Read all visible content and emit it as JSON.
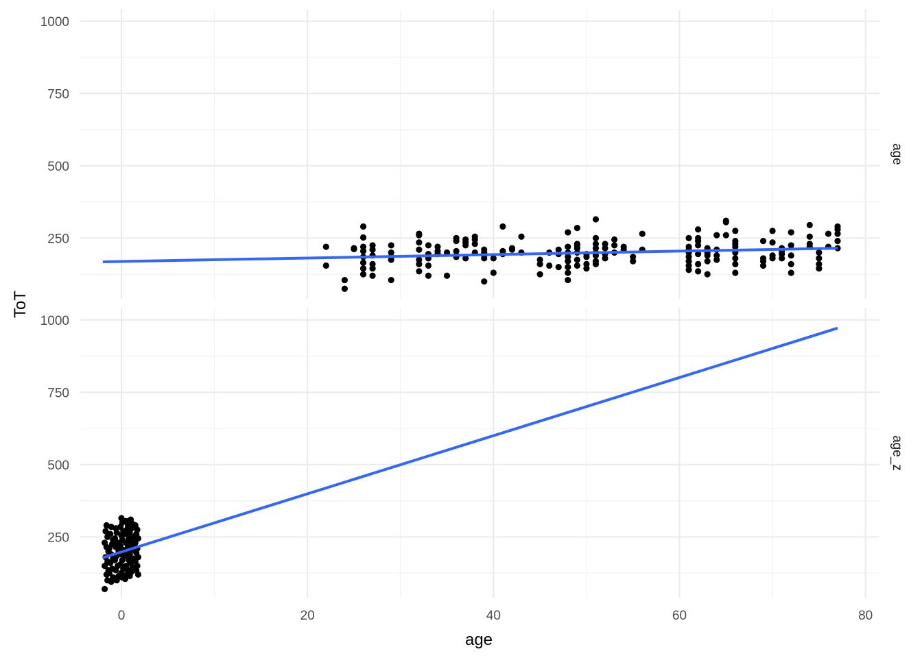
{
  "chart_data": {
    "type": "scatter",
    "title": "",
    "xlabel": "age",
    "ylabel": "ToT",
    "xlim": [
      -4.5,
      81.5
    ],
    "xticks": [
      0,
      20,
      40,
      60,
      80
    ],
    "yticks": [
      250,
      500,
      750,
      1000
    ],
    "grid": true,
    "point_color": "#000000",
    "line_color": "#3366ff",
    "panels": [
      {
        "strip_label": "age",
        "ylim": [
          40,
          1040
        ],
        "points": [
          [
            22,
            155
          ],
          [
            22,
            220
          ],
          [
            24,
            75
          ],
          [
            24,
            105
          ],
          [
            25,
            212
          ],
          [
            25,
            215
          ],
          [
            26,
            290
          ],
          [
            26,
            252
          ],
          [
            26,
            220
          ],
          [
            26,
            205
          ],
          [
            26,
            185
          ],
          [
            26,
            165
          ],
          [
            26,
            145
          ],
          [
            26,
            125
          ],
          [
            27,
            225
          ],
          [
            27,
            210
          ],
          [
            27,
            190
          ],
          [
            27,
            160
          ],
          [
            27,
            145
          ],
          [
            27,
            120
          ],
          [
            29,
            225
          ],
          [
            29,
            200
          ],
          [
            29,
            185
          ],
          [
            29,
            175
          ],
          [
            29,
            105
          ],
          [
            32,
            265
          ],
          [
            32,
            260
          ],
          [
            32,
            235
          ],
          [
            32,
            210
          ],
          [
            32,
            175
          ],
          [
            32,
            160
          ],
          [
            32,
            135
          ],
          [
            33,
            225
          ],
          [
            33,
            195
          ],
          [
            33,
            180
          ],
          [
            33,
            155
          ],
          [
            33,
            120
          ],
          [
            34,
            220
          ],
          [
            34,
            205
          ],
          [
            34,
            195
          ],
          [
            35,
            200
          ],
          [
            35,
            120
          ],
          [
            36,
            250
          ],
          [
            36,
            240
          ],
          [
            36,
            205
          ],
          [
            36,
            190
          ],
          [
            36,
            185
          ],
          [
            37,
            245
          ],
          [
            37,
            235
          ],
          [
            37,
            225
          ],
          [
            37,
            180
          ],
          [
            38,
            255
          ],
          [
            38,
            245
          ],
          [
            38,
            230
          ],
          [
            38,
            200
          ],
          [
            39,
            210
          ],
          [
            39,
            200
          ],
          [
            39,
            190
          ],
          [
            39,
            180
          ],
          [
            39,
            100
          ],
          [
            40,
            180
          ],
          [
            40,
            130
          ],
          [
            41,
            290
          ],
          [
            41,
            205
          ],
          [
            41,
            195
          ],
          [
            42,
            215
          ],
          [
            42,
            210
          ],
          [
            43,
            255
          ],
          [
            43,
            200
          ],
          [
            45,
            175
          ],
          [
            45,
            160
          ],
          [
            45,
            125
          ],
          [
            46,
            200
          ],
          [
            46,
            155
          ],
          [
            47,
            210
          ],
          [
            47,
            195
          ],
          [
            47,
            150
          ],
          [
            48,
            270
          ],
          [
            48,
            220
          ],
          [
            48,
            200
          ],
          [
            48,
            185
          ],
          [
            48,
            170
          ],
          [
            48,
            150
          ],
          [
            48,
            130
          ],
          [
            48,
            105
          ],
          [
            49,
            285
          ],
          [
            49,
            230
          ],
          [
            49,
            225
          ],
          [
            49,
            215
          ],
          [
            49,
            200
          ],
          [
            49,
            175
          ],
          [
            49,
            155
          ],
          [
            50,
            195
          ],
          [
            50,
            185
          ],
          [
            50,
            160
          ],
          [
            50,
            145
          ],
          [
            51,
            315
          ],
          [
            51,
            250
          ],
          [
            51,
            230
          ],
          [
            51,
            215
          ],
          [
            51,
            200
          ],
          [
            51,
            190
          ],
          [
            51,
            170
          ],
          [
            51,
            160
          ],
          [
            52,
            230
          ],
          [
            52,
            215
          ],
          [
            52,
            195
          ],
          [
            52,
            180
          ],
          [
            53,
            245
          ],
          [
            53,
            225
          ],
          [
            53,
            200
          ],
          [
            54,
            220
          ],
          [
            54,
            210
          ],
          [
            55,
            185
          ],
          [
            55,
            170
          ],
          [
            56,
            265
          ],
          [
            56,
            210
          ],
          [
            61,
            250
          ],
          [
            61,
            220
          ],
          [
            61,
            210
          ],
          [
            61,
            200
          ],
          [
            61,
            185
          ],
          [
            61,
            170
          ],
          [
            61,
            155
          ],
          [
            61,
            140
          ],
          [
            62,
            280
          ],
          [
            62,
            250
          ],
          [
            62,
            240
          ],
          [
            62,
            225
          ],
          [
            62,
            195
          ],
          [
            62,
            160
          ],
          [
            62,
            135
          ],
          [
            63,
            215
          ],
          [
            63,
            200
          ],
          [
            63,
            190
          ],
          [
            63,
            170
          ],
          [
            63,
            125
          ],
          [
            64,
            260
          ],
          [
            64,
            210
          ],
          [
            64,
            190
          ],
          [
            64,
            175
          ],
          [
            65,
            310
          ],
          [
            65,
            305
          ],
          [
            65,
            260
          ],
          [
            66,
            275
          ],
          [
            66,
            240
          ],
          [
            66,
            230
          ],
          [
            66,
            220
          ],
          [
            66,
            200
          ],
          [
            66,
            180
          ],
          [
            66,
            160
          ],
          [
            66,
            130
          ],
          [
            69,
            240
          ],
          [
            69,
            180
          ],
          [
            69,
            170
          ],
          [
            69,
            155
          ],
          [
            70,
            275
          ],
          [
            70,
            235
          ],
          [
            70,
            190
          ],
          [
            70,
            180
          ],
          [
            71,
            215
          ],
          [
            71,
            205
          ],
          [
            71,
            195
          ],
          [
            71,
            180
          ],
          [
            72,
            270
          ],
          [
            72,
            225
          ],
          [
            72,
            190
          ],
          [
            72,
            160
          ],
          [
            72,
            130
          ],
          [
            74,
            295
          ],
          [
            74,
            255
          ],
          [
            74,
            230
          ],
          [
            74,
            220
          ],
          [
            75,
            200
          ],
          [
            75,
            180
          ],
          [
            75,
            160
          ],
          [
            75,
            145
          ],
          [
            76,
            265
          ],
          [
            76,
            220
          ],
          [
            77,
            290
          ],
          [
            77,
            280
          ],
          [
            77,
            265
          ],
          [
            77,
            240
          ],
          [
            77,
            215
          ]
        ],
        "line": [
          [
            -2,
            168
          ],
          [
            77,
            215
          ]
        ]
      },
      {
        "strip_label": "age_z",
        "ylim": [
          40,
          1040
        ],
        "points": [
          [
            -1.8,
            70
          ],
          [
            -1.6,
            290
          ],
          [
            -1.7,
            270
          ],
          [
            -1.5,
            250
          ],
          [
            -1.8,
            230
          ],
          [
            -1.6,
            215
          ],
          [
            -1.4,
            200
          ],
          [
            -1.7,
            180
          ],
          [
            -1.5,
            165
          ],
          [
            -1.8,
            150
          ],
          [
            -1.4,
            135
          ],
          [
            -1.6,
            120
          ],
          [
            -1.5,
            100
          ],
          [
            -1.1,
            285
          ],
          [
            -1.2,
            260
          ],
          [
            -0.9,
            240
          ],
          [
            -1.0,
            225
          ],
          [
            -1.3,
            210
          ],
          [
            -1.1,
            190
          ],
          [
            -0.9,
            175
          ],
          [
            -1.2,
            160
          ],
          [
            -1.0,
            140
          ],
          [
            -1.3,
            125
          ],
          [
            -0.9,
            110
          ],
          [
            -1.1,
            95
          ],
          [
            -0.6,
            280
          ],
          [
            -0.5,
            265
          ],
          [
            -0.7,
            245
          ],
          [
            -0.4,
            230
          ],
          [
            -0.6,
            215
          ],
          [
            -0.3,
            200
          ],
          [
            -0.5,
            185
          ],
          [
            -0.7,
            170
          ],
          [
            -0.4,
            150
          ],
          [
            -0.6,
            135
          ],
          [
            -0.3,
            115
          ],
          [
            -0.5,
            100
          ],
          [
            0.0,
            315
          ],
          [
            0.1,
            300
          ],
          [
            -0.1,
            285
          ],
          [
            0.2,
            270
          ],
          [
            0.0,
            255
          ],
          [
            0.1,
            240
          ],
          [
            -0.1,
            220
          ],
          [
            0.2,
            205
          ],
          [
            0.0,
            190
          ],
          [
            0.1,
            170
          ],
          [
            -0.1,
            155
          ],
          [
            0.2,
            140
          ],
          [
            0.0,
            125
          ],
          [
            0.1,
            110
          ],
          [
            0.5,
            305
          ],
          [
            0.7,
            290
          ],
          [
            0.6,
            275
          ],
          [
            0.4,
            260
          ],
          [
            0.8,
            245
          ],
          [
            0.5,
            230
          ],
          [
            0.7,
            215
          ],
          [
            0.6,
            200
          ],
          [
            0.4,
            185
          ],
          [
            0.8,
            170
          ],
          [
            0.5,
            150
          ],
          [
            0.7,
            135
          ],
          [
            0.6,
            120
          ],
          [
            0.4,
            105
          ],
          [
            1.0,
            310
          ],
          [
            1.2,
            295
          ],
          [
            1.1,
            280
          ],
          [
            0.9,
            265
          ],
          [
            1.3,
            250
          ],
          [
            1.0,
            235
          ],
          [
            1.2,
            220
          ],
          [
            1.1,
            205
          ],
          [
            0.9,
            190
          ],
          [
            1.3,
            175
          ],
          [
            1.0,
            160
          ],
          [
            1.2,
            145
          ],
          [
            1.1,
            130
          ],
          [
            0.9,
            115
          ],
          [
            1.5,
            290
          ],
          [
            1.7,
            275
          ],
          [
            1.6,
            260
          ],
          [
            1.8,
            245
          ],
          [
            1.5,
            230
          ],
          [
            1.7,
            210
          ],
          [
            1.6,
            195
          ],
          [
            1.8,
            180
          ],
          [
            1.5,
            165
          ],
          [
            1.7,
            150
          ],
          [
            1.6,
            135
          ],
          [
            1.8,
            120
          ]
        ],
        "line": [
          [
            -2,
            178
          ],
          [
            77,
            972
          ]
        ]
      }
    ]
  }
}
